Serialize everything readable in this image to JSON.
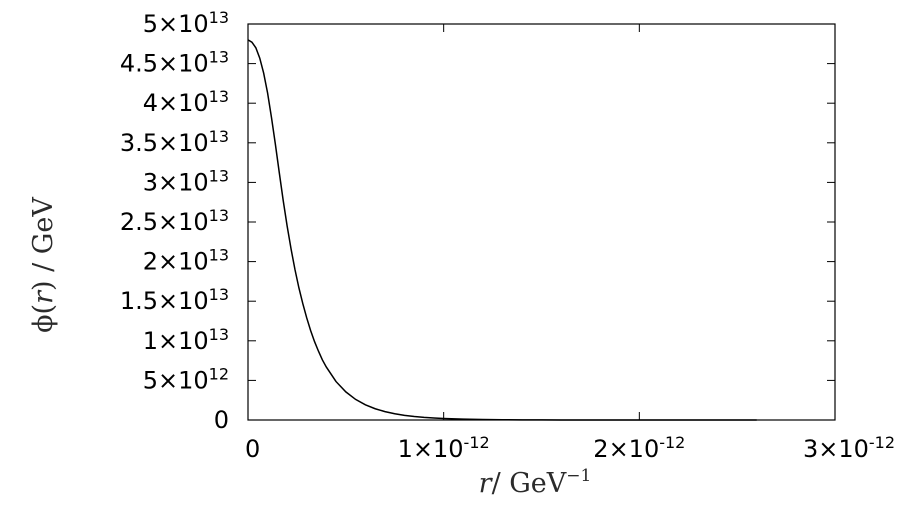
{
  "chart_data": {
    "type": "line",
    "title": "",
    "xlabel": {
      "parts": [
        "r",
        "/ GeV",
        "−1"
      ]
    },
    "ylabel": {
      "parts": [
        "ϕ(",
        "r",
        ") / GeV"
      ]
    },
    "xlim": [
      0,
      3e-12
    ],
    "ylim": [
      0,
      50000000000000.0
    ],
    "grid": false,
    "legend": "none",
    "x_ticks": [
      {
        "value": 0,
        "mantissa": "0",
        "exponent": ""
      },
      {
        "value": 1e-12,
        "mantissa": "1×10",
        "exponent": "-12"
      },
      {
        "value": 2e-12,
        "mantissa": "2×10",
        "exponent": "-12"
      },
      {
        "value": 3e-12,
        "mantissa": "3×10",
        "exponent": "-12"
      }
    ],
    "y_ticks": [
      {
        "value": 0,
        "mantissa": "0",
        "exponent": ""
      },
      {
        "value": 5000000000000.0,
        "mantissa": "5×10",
        "exponent": "12"
      },
      {
        "value": 10000000000000.0,
        "mantissa": "1×10",
        "exponent": "13"
      },
      {
        "value": 15000000000000.0,
        "mantissa": "1.5×10",
        "exponent": "13"
      },
      {
        "value": 20000000000000.0,
        "mantissa": "2×10",
        "exponent": "13"
      },
      {
        "value": 25000000000000.0,
        "mantissa": "2.5×10",
        "exponent": "13"
      },
      {
        "value": 30000000000000.0,
        "mantissa": "3×10",
        "exponent": "13"
      },
      {
        "value": 35000000000000.0,
        "mantissa": "3.5×10",
        "exponent": "13"
      },
      {
        "value": 40000000000000.0,
        "mantissa": "4×10",
        "exponent": "13"
      },
      {
        "value": 45000000000000.0,
        "mantissa": "4.5×10",
        "exponent": "13"
      },
      {
        "value": 50000000000000.0,
        "mantissa": "5×10",
        "exponent": "13"
      }
    ],
    "line_color": "#000000",
    "series": [
      {
        "x": [
          0,
          2e-14,
          4e-14,
          6e-14,
          8e-14,
          1e-13,
          1.2e-13,
          1.4e-13,
          1.6e-13,
          1.8e-13,
          2e-13,
          2.2e-13,
          2.4e-13,
          2.6e-13,
          2.8e-13,
          3e-13,
          3.2e-13,
          3.4e-13,
          3.6e-13,
          3.8e-13,
          4e-13,
          4.5e-13,
          5e-13,
          5.5e-13,
          6e-13,
          6.5e-13,
          7e-13,
          7.5e-13,
          8e-13,
          8.5e-13,
          9e-13,
          9.5e-13,
          1e-12,
          1.1e-12,
          1.2e-12,
          1.3e-12,
          1.4e-12,
          1.5e-12,
          1.6e-12,
          1.7e-12,
          1.8e-12,
          1.9e-12,
          2e-12,
          2.2e-12,
          2.4e-12,
          2.6e-12
        ],
        "y": [
          48000000000000.0,
          47700000000000.0,
          47000000000000.0,
          45700000000000.0,
          43800000000000.0,
          41300000000000.0,
          38200000000000.0,
          34800000000000.0,
          31200000000000.0,
          27700000000000.0,
          24500000000000.0,
          21600000000000.0,
          19000000000000.0,
          16700000000000.0,
          14700000000000.0,
          12900000000000.0,
          11300000000000.0,
          9900000000000.0,
          8700000000000.0,
          7600000000000.0,
          6700000000000.0,
          4850000000000.0,
          3550000000000.0,
          2600000000000.0,
          1920000000000.0,
          1420000000000.0,
          1060000000000.0,
          790000000000.0,
          590000000000.0,
          440000000000.0,
          330000000000.0,
          250000000000.0,
          190000000000.0,
          110000000000.0,
          65000000000.0,
          38000000000.0,
          22000000000.0,
          13000000000.0,
          8000000000.0,
          5000000000.0,
          3000000000.0,
          1800000000.0,
          1100000000.0,
          400000000.0,
          150000000.0,
          60000000.0
        ]
      }
    ]
  }
}
